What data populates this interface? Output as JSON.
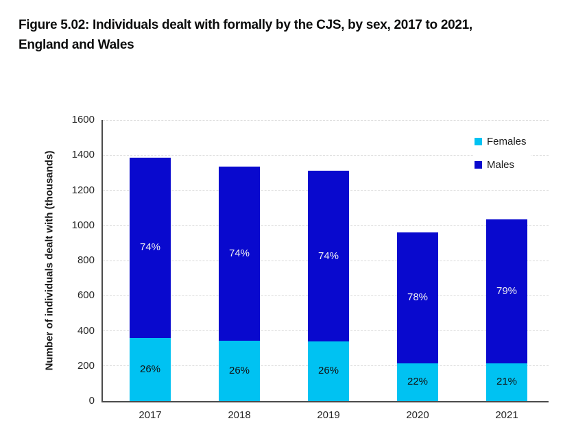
{
  "header": {
    "title_lines": [
      "Figure 5.02: Individuals dealt with formally by the CJS, by sex, 2017 to 2021,",
      "England and Wales"
    ]
  },
  "chart_data": {
    "type": "bar",
    "stacked": true,
    "categories": [
      "2017",
      "2018",
      "2019",
      "2020",
      "2021"
    ],
    "series": [
      {
        "name": "Females",
        "color": "#00c2f2",
        "values": [
          360,
          345,
          340,
          215,
          215
        ],
        "segment_labels": [
          "26%",
          "26%",
          "26%",
          "22%",
          "21%"
        ],
        "label_color": "#111111"
      },
      {
        "name": "Males",
        "color": "#0909ce",
        "values": [
          1025,
          990,
          970,
          745,
          820
        ],
        "segment_labels": [
          "74%",
          "74%",
          "74%",
          "78%",
          "79%"
        ],
        "label_color": "#f2f2f2"
      }
    ],
    "stack_totals": [
      1385,
      1335,
      1310,
      960,
      1035
    ],
    "ylabel": "Number of individuals dealt with (thousands)",
    "xlabel": "",
    "ylim": [
      0,
      1600
    ],
    "ytick_step": 200,
    "ytick_labels": [
      "0",
      "200",
      "400",
      "600",
      "800",
      "1000",
      "1200",
      "1400",
      "1600"
    ],
    "grid": "horizontal-dashed",
    "legend_position": "top-right-inside"
  },
  "colors": {
    "axis": "#4a4a4a",
    "gridline": "#d9d9d9",
    "tick_text": "#262626",
    "title_text": "#0b0c0c",
    "background": "#ffffff"
  }
}
